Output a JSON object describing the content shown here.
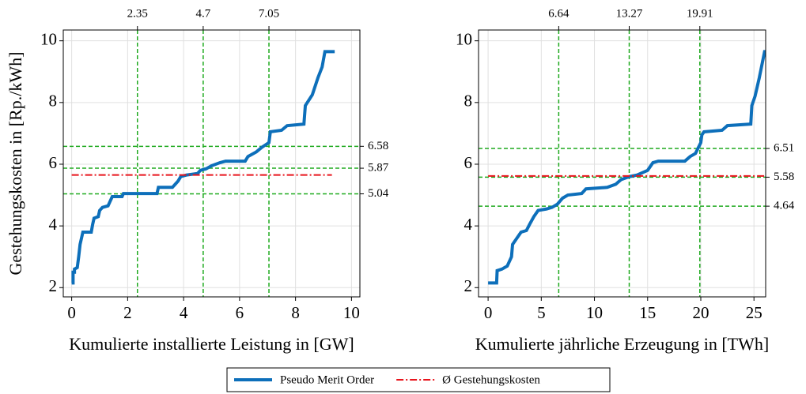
{
  "chart_data": [
    {
      "type": "line",
      "x_label": "Kumulierte installierte Leistung in [GW]",
      "y_label": "Gestehungskosten in [Rp./kWh]",
      "xlim": [
        -0.3,
        10.3
      ],
      "ylim": [
        1.7,
        10.35
      ],
      "xticks": [
        0,
        2,
        4,
        6,
        8,
        10
      ],
      "yticks": [
        2,
        4,
        6,
        8,
        10
      ],
      "x2ticks": [
        2.35,
        4.7,
        7.05
      ],
      "y2ticks": [
        5.04,
        5.87,
        6.58
      ],
      "reference_color": "#1faa1f",
      "grid": true,
      "legend": "lower center",
      "series": [
        {
          "name": "Pseudo Merit Order",
          "color": "#0d6fba",
          "style": "solid",
          "x": [
            0,
            0.05,
            0.05,
            0.1,
            0.1,
            0.2,
            0.2,
            0.25,
            0.3,
            0.35,
            0.4,
            0.7,
            0.75,
            0.8,
            0.95,
            1.0,
            1.1,
            1.3,
            1.35,
            1.45,
            1.8,
            1.85,
            3.05,
            3.1,
            3.6,
            3.7,
            3.8,
            3.9,
            4.1,
            4.5,
            4.6,
            4.8,
            5.0,
            5.3,
            5.5,
            6.2,
            6.3,
            6.6,
            6.8,
            7.05,
            7.1,
            7.5,
            7.7,
            8.3,
            8.35,
            8.6,
            8.8,
            8.95,
            9.05,
            9.4
          ],
          "values": [
            2.15,
            2.15,
            2.5,
            2.5,
            2.6,
            2.65,
            2.65,
            3.0,
            3.4,
            3.6,
            3.8,
            3.8,
            4.05,
            4.25,
            4.3,
            4.5,
            4.6,
            4.65,
            4.75,
            4.95,
            4.95,
            5.05,
            5.05,
            5.25,
            5.25,
            5.35,
            5.45,
            5.6,
            5.65,
            5.7,
            5.8,
            5.85,
            5.95,
            6.05,
            6.1,
            6.1,
            6.25,
            6.4,
            6.55,
            6.7,
            7.05,
            7.1,
            7.25,
            7.3,
            7.9,
            8.25,
            8.8,
            9.15,
            9.65,
            9.65
          ]
        },
        {
          "name": "Ø Gestehungskosten",
          "color": "#e8141c",
          "style": "dashdot",
          "x": [
            0,
            9.3
          ],
          "values": [
            5.65,
            5.65
          ]
        }
      ]
    },
    {
      "type": "line",
      "x_label": "Kumulierte jährliche Erzeugung in [TWh]",
      "xlim": [
        -0.9,
        26.1
      ],
      "ylim": [
        1.7,
        10.35
      ],
      "xticks": [
        0,
        5,
        10,
        15,
        20,
        25
      ],
      "yticks": [
        2,
        4,
        6,
        8,
        10
      ],
      "x2ticks": [
        6.64,
        13.27,
        19.91
      ],
      "y2ticks": [
        4.64,
        5.58,
        6.51
      ],
      "reference_color": "#1faa1f",
      "grid": true,
      "series": [
        {
          "color": "#0d6fba",
          "style": "solid",
          "x": [
            0,
            0.8,
            0.85,
            1.3,
            1.8,
            2.2,
            2.3,
            2.7,
            3.1,
            3.6,
            3.9,
            4.3,
            4.7,
            5.5,
            6.0,
            6.5,
            7.0,
            7.5,
            8.8,
            9.2,
            11.2,
            12.0,
            12.5,
            13.3,
            14.0,
            15.0,
            15.5,
            16.0,
            18.5,
            19.0,
            19.5,
            20.0,
            20.1,
            20.3,
            22.0,
            22.5,
            24.7,
            24.8,
            25.1,
            25.5,
            26.0,
            26.5
          ],
          "values": [
            2.15,
            2.15,
            2.55,
            2.6,
            2.7,
            3.0,
            3.4,
            3.6,
            3.8,
            3.85,
            4.05,
            4.3,
            4.5,
            4.55,
            4.6,
            4.7,
            4.9,
            5.0,
            5.05,
            5.2,
            5.25,
            5.35,
            5.5,
            5.6,
            5.65,
            5.8,
            6.05,
            6.1,
            6.1,
            6.25,
            6.35,
            6.7,
            6.95,
            7.05,
            7.1,
            7.25,
            7.3,
            7.9,
            8.2,
            8.8,
            9.65,
            9.65
          ]
        },
        {
          "color": "#e8141c",
          "style": "dashdot",
          "x": [
            0,
            26.5
          ],
          "values": [
            5.62,
            5.62
          ]
        }
      ]
    }
  ]
}
